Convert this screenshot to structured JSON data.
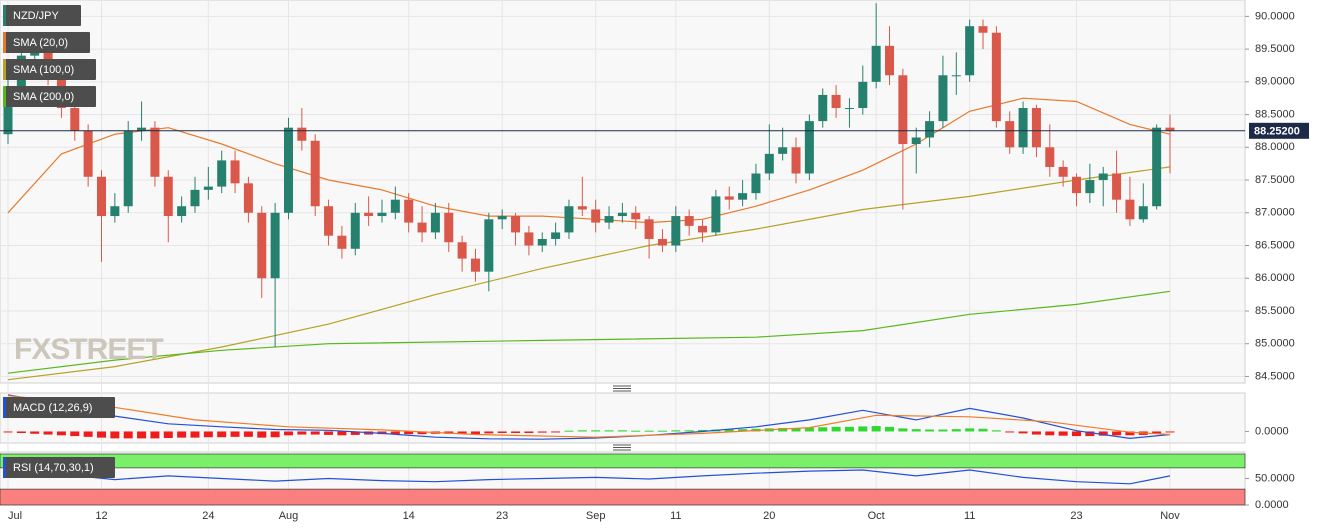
{
  "chart_data": [
    {
      "type": "candlestick",
      "name": "NZD/JPY",
      "up_color": "#26806e",
      "down_color": "#d9584a",
      "categories": [
        "Jul",
        null,
        null,
        null,
        null,
        null,
        null,
        "12",
        null,
        null,
        null,
        null,
        null,
        null,
        null,
        "24",
        null,
        null,
        null,
        null,
        null,
        "Aug",
        null,
        null,
        null,
        null,
        null,
        null,
        null,
        null,
        "14",
        null,
        null,
        null,
        null,
        null,
        null,
        "23",
        null,
        null,
        null,
        null,
        null,
        null,
        "Sep",
        null,
        null,
        null,
        null,
        null,
        "11",
        null,
        null,
        null,
        null,
        null,
        null,
        "20",
        null,
        null,
        null,
        null,
        null,
        null,
        null,
        "Oct",
        null,
        null,
        null,
        null,
        null,
        null,
        "11",
        null,
        null,
        null,
        null,
        null,
        null,
        null,
        "23",
        null,
        null,
        null,
        null,
        null,
        null,
        "Nov"
      ],
      "open": [
        88.2,
        88.9,
        89.4,
        89.55,
        89.1,
        88.6,
        88.25,
        87.55,
        86.95,
        87.1,
        88.25,
        88.3,
        87.55,
        86.95,
        87.1,
        87.35,
        87.4,
        87.8,
        87.45,
        87.0,
        86.0,
        87.0,
        88.3,
        88.1,
        87.1,
        86.65,
        86.45,
        87.0,
        86.95,
        87.0,
        87.2,
        86.85,
        86.7,
        87.0,
        86.55,
        86.3,
        86.1,
        86.9,
        86.95,
        86.7,
        86.5,
        86.6,
        86.7,
        87.1,
        87.05,
        86.85,
        86.95,
        87.0,
        86.9,
        86.6,
        86.5,
        86.95,
        86.8,
        86.7,
        87.25,
        87.2,
        87.3,
        87.6,
        87.9,
        88.0,
        87.6,
        88.4,
        88.8,
        88.6,
        88.6,
        89.0,
        89.55,
        89.1,
        88.05,
        88.15,
        88.4,
        89.1,
        89.1,
        89.85,
        89.75,
        88.4,
        88.0,
        88.6,
        88.0,
        87.7,
        87.55,
        87.3,
        87.5,
        87.6,
        87.2,
        86.9,
        87.1,
        88.3
      ],
      "high": [
        89.05,
        89.55,
        89.7,
        89.65,
        89.2,
        88.75,
        88.35,
        87.65,
        87.3,
        88.4,
        88.7,
        88.4,
        87.65,
        87.25,
        87.55,
        87.7,
        87.95,
        87.95,
        87.55,
        87.1,
        87.15,
        88.45,
        88.6,
        88.2,
        87.2,
        86.8,
        87.15,
        87.25,
        87.2,
        87.4,
        87.3,
        87.1,
        87.15,
        87.15,
        86.65,
        86.45,
        87.0,
        87.05,
        87.0,
        86.8,
        86.7,
        86.85,
        87.2,
        87.55,
        87.2,
        87.1,
        87.15,
        87.1,
        86.95,
        86.75,
        87.1,
        87.05,
        86.9,
        87.35,
        87.4,
        87.5,
        87.75,
        88.35,
        88.3,
        88.15,
        88.5,
        88.9,
        88.95,
        88.75,
        89.25,
        90.2,
        89.85,
        89.2,
        88.3,
        88.55,
        89.4,
        89.45,
        89.95,
        89.95,
        89.85,
        88.55,
        88.7,
        88.65,
        88.35,
        87.8,
        87.6,
        87.75,
        87.7,
        87.95,
        87.55,
        87.45,
        88.35,
        88.5
      ],
      "low": [
        88.05,
        88.8,
        89.25,
        88.95,
        88.45,
        88.1,
        87.4,
        86.25,
        86.85,
        87.0,
        88.1,
        87.4,
        86.55,
        86.85,
        87.0,
        87.2,
        87.3,
        87.3,
        86.85,
        85.7,
        84.95,
        86.9,
        87.95,
        86.95,
        86.5,
        86.3,
        86.35,
        86.8,
        86.85,
        86.9,
        86.7,
        86.55,
        86.6,
        86.4,
        86.1,
        85.95,
        85.8,
        86.75,
        86.5,
        86.35,
        86.4,
        86.5,
        86.6,
        86.95,
        86.7,
        86.75,
        86.85,
        86.75,
        86.3,
        86.4,
        86.4,
        86.65,
        86.55,
        86.65,
        87.05,
        87.1,
        87.2,
        87.5,
        87.8,
        87.45,
        87.5,
        88.3,
        88.45,
        88.3,
        88.5,
        88.9,
        88.95,
        87.05,
        87.6,
        88.0,
        88.3,
        88.8,
        89.0,
        89.5,
        88.3,
        87.9,
        87.9,
        87.85,
        87.55,
        87.4,
        87.1,
        87.15,
        87.1,
        87.0,
        86.8,
        86.85,
        87.05,
        87.6
      ],
      "close": [
        88.9,
        89.4,
        89.55,
        89.1,
        88.6,
        88.25,
        87.55,
        86.95,
        87.1,
        88.25,
        88.3,
        87.55,
        86.95,
        87.1,
        87.35,
        87.4,
        87.8,
        87.45,
        87.0,
        86.0,
        87.0,
        88.3,
        88.1,
        87.1,
        86.65,
        86.45,
        87.0,
        86.95,
        87.0,
        87.2,
        86.85,
        86.7,
        87.0,
        86.55,
        86.3,
        86.1,
        86.9,
        86.95,
        86.7,
        86.5,
        86.6,
        86.7,
        87.1,
        87.05,
        86.85,
        86.95,
        87.0,
        86.9,
        86.6,
        86.5,
        86.95,
        86.8,
        86.7,
        87.25,
        87.2,
        87.3,
        87.6,
        87.9,
        88.0,
        87.6,
        88.4,
        88.8,
        88.6,
        88.6,
        89.0,
        89.55,
        89.1,
        88.05,
        88.15,
        88.4,
        89.1,
        89.1,
        89.85,
        89.75,
        88.4,
        88.0,
        88.6,
        88.0,
        87.7,
        87.55,
        87.3,
        87.5,
        87.6,
        87.2,
        86.9,
        87.1,
        88.3,
        88.25
      ],
      "series": [
        {
          "name": "SMA (20,0)",
          "color": "#e8792b",
          "x": [
            0,
            4,
            8,
            12,
            16,
            20,
            24,
            28,
            32,
            36,
            40,
            44,
            48,
            52,
            56,
            60,
            64,
            68,
            72,
            76,
            80,
            84,
            87
          ],
          "values": [
            87.0,
            87.9,
            88.2,
            88.3,
            88.05,
            87.75,
            87.5,
            87.35,
            87.1,
            86.95,
            86.95,
            86.9,
            86.85,
            86.9,
            87.1,
            87.35,
            87.65,
            88.05,
            88.55,
            88.75,
            88.7,
            88.35,
            88.2
          ]
        },
        {
          "name": "SMA (100,0)",
          "color": "#b5a227",
          "x": [
            0,
            8,
            16,
            24,
            32,
            40,
            48,
            56,
            64,
            72,
            80,
            87
          ],
          "values": [
            84.45,
            84.65,
            84.95,
            85.3,
            85.75,
            86.15,
            86.5,
            86.75,
            87.05,
            87.25,
            87.5,
            87.7
          ]
        },
        {
          "name": "SMA (200,0)",
          "color": "#58b81b",
          "x": [
            0,
            8,
            16,
            24,
            40,
            56,
            64,
            72,
            80,
            87
          ],
          "values": [
            84.55,
            84.75,
            84.9,
            85.0,
            85.05,
            85.1,
            85.2,
            85.45,
            85.6,
            85.8
          ]
        }
      ],
      "last_price": {
        "value": 88.252,
        "label": "88.25200"
      },
      "ylim": [
        84.4,
        90.25
      ],
      "yticks": [
        {
          "value": 90,
          "label": "90.0000"
        },
        {
          "value": 89.5,
          "label": "89.5000"
        },
        {
          "value": 89,
          "label": "89.0000"
        },
        {
          "value": 88.5,
          "label": "88.5000"
        },
        {
          "value": 88,
          "label": "88.0000"
        },
        {
          "value": 87.5,
          "label": "87.5000"
        },
        {
          "value": 87,
          "label": "87.0000"
        },
        {
          "value": 86.5,
          "label": "86.5000"
        },
        {
          "value": 86,
          "label": "86.0000"
        },
        {
          "value": 85.5,
          "label": "85.5000"
        },
        {
          "value": 85,
          "label": "85.0000"
        },
        {
          "value": 84.5,
          "label": "84.5000"
        }
      ],
      "grid": true,
      "watermark": "FXSTREET"
    },
    {
      "type": "macd",
      "title": "MACD (12,26,9)",
      "up_color": "#2fd82f",
      "down_color": "#f01c1c",
      "histogram": [
        -0.02,
        -0.04,
        -0.06,
        -0.08,
        -0.1,
        -0.12,
        -0.14,
        -0.16,
        -0.18,
        -0.18,
        -0.18,
        -0.18,
        -0.17,
        -0.16,
        -0.16,
        -0.15,
        -0.15,
        -0.14,
        -0.14,
        -0.16,
        -0.15,
        -0.1,
        -0.08,
        -0.08,
        -0.09,
        -0.1,
        -0.09,
        -0.08,
        -0.07,
        -0.07,
        -0.07,
        -0.07,
        -0.06,
        -0.06,
        -0.07,
        -0.07,
        -0.05,
        -0.04,
        -0.04,
        -0.04,
        -0.03,
        -0.02,
        0.02,
        0.03,
        0.03,
        0.03,
        0.03,
        0.02,
        0.02,
        0.02,
        0.03,
        0.03,
        0.04,
        0.05,
        0.05,
        0.06,
        0.07,
        0.08,
        0.09,
        0.09,
        0.1,
        0.11,
        0.12,
        0.12,
        0.13,
        0.14,
        0.12,
        0.08,
        0.06,
        0.05,
        0.05,
        0.06,
        0.08,
        0.07,
        0.03,
        -0.02,
        -0.05,
        -0.08,
        -0.1,
        -0.11,
        -0.12,
        -0.12,
        -0.11,
        -0.1,
        -0.1,
        -0.09,
        -0.05,
        -0.02
      ],
      "series": [
        {
          "name": "MACD",
          "color": "#2350d8",
          "x": [
            0,
            4,
            8,
            12,
            16,
            20,
            24,
            28,
            32,
            36,
            40,
            44,
            48,
            52,
            56,
            60,
            64,
            68,
            72,
            76,
            80,
            84,
            87
          ],
          "values": [
            0.95,
            0.7,
            0.4,
            0.2,
            0.12,
            0.05,
            0.03,
            -0.05,
            -0.15,
            -0.19,
            -0.2,
            -0.17,
            -0.1,
            0.0,
            0.12,
            0.3,
            0.55,
            0.3,
            0.6,
            0.35,
            0.02,
            -0.18,
            -0.08
          ]
        },
        {
          "name": "Signal",
          "color": "#ef7d28",
          "x": [
            0,
            7,
            14,
            21,
            28,
            35,
            44,
            52,
            60,
            65,
            72,
            78,
            84,
            87
          ],
          "values": [
            0.93,
            0.68,
            0.3,
            0.12,
            0.04,
            -0.08,
            -0.15,
            -0.05,
            0.1,
            0.42,
            0.38,
            0.25,
            -0.02,
            -0.08
          ]
        }
      ],
      "ylim": [
        -0.3,
        1.0
      ],
      "yticks": [
        {
          "value": 0,
          "label": "0.0000"
        }
      ]
    },
    {
      "type": "rsi",
      "title": "RSI (14,70,30,1)",
      "levels": [
        70,
        30
      ],
      "level_colors": [
        "#7af06a",
        "#fa8080"
      ],
      "series": [
        {
          "name": "RSI",
          "color": "#2350d8",
          "x": [
            0,
            4,
            8,
            12,
            16,
            20,
            24,
            28,
            32,
            36,
            40,
            44,
            48,
            52,
            56,
            60,
            64,
            68,
            72,
            76,
            80,
            84,
            87
          ],
          "values": [
            62,
            58,
            48,
            55,
            50,
            45,
            50,
            46,
            44,
            48,
            50,
            52,
            49,
            55,
            60,
            64,
            66,
            55,
            66,
            52,
            44,
            40,
            55
          ]
        }
      ],
      "ylim": [
        0,
        100
      ],
      "yticks": [
        {
          "value": 50,
          "label": "50.0000"
        },
        {
          "value": 0,
          "label": "0.0000"
        }
      ]
    }
  ]
}
